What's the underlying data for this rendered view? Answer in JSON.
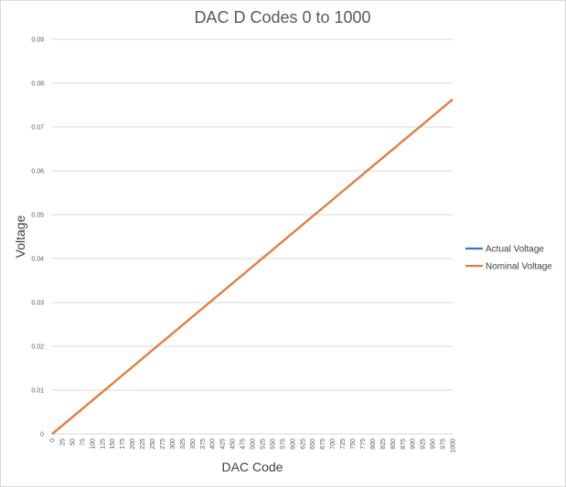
{
  "chart_data": {
    "type": "line",
    "title": "DAC D Codes 0 to 1000",
    "xlabel": "DAC Code",
    "ylabel": "Voltage",
    "xlim": [
      0,
      1000
    ],
    "ylim": [
      0,
      0.09
    ],
    "x_ticks": [
      "0",
      "25",
      "50",
      "75",
      "100",
      "125",
      "150",
      "175",
      "200",
      "225",
      "250",
      "275",
      "300",
      "325",
      "350",
      "375",
      "400",
      "425",
      "450",
      "475",
      "500",
      "525",
      "550",
      "575",
      "600",
      "625",
      "650",
      "675",
      "700",
      "725",
      "750",
      "775",
      "800",
      "825",
      "850",
      "875",
      "900",
      "925",
      "950",
      "975",
      "1000"
    ],
    "y_ticks": [
      "0",
      "0.01",
      "0.02",
      "0.03",
      "0.04",
      "0.05",
      "0.06",
      "0.07",
      "0.08",
      "0.09"
    ],
    "grid": "horizontal",
    "legend_position": "right",
    "series": [
      {
        "name": "Actual Voltage",
        "color": "#4472c4",
        "x": [
          0,
          1000
        ],
        "y": [
          0,
          0.0763
        ]
      },
      {
        "name": "Nominal Voltage",
        "color": "#ed7d31",
        "x": [
          0,
          1000
        ],
        "y": [
          0,
          0.0763
        ]
      }
    ]
  }
}
